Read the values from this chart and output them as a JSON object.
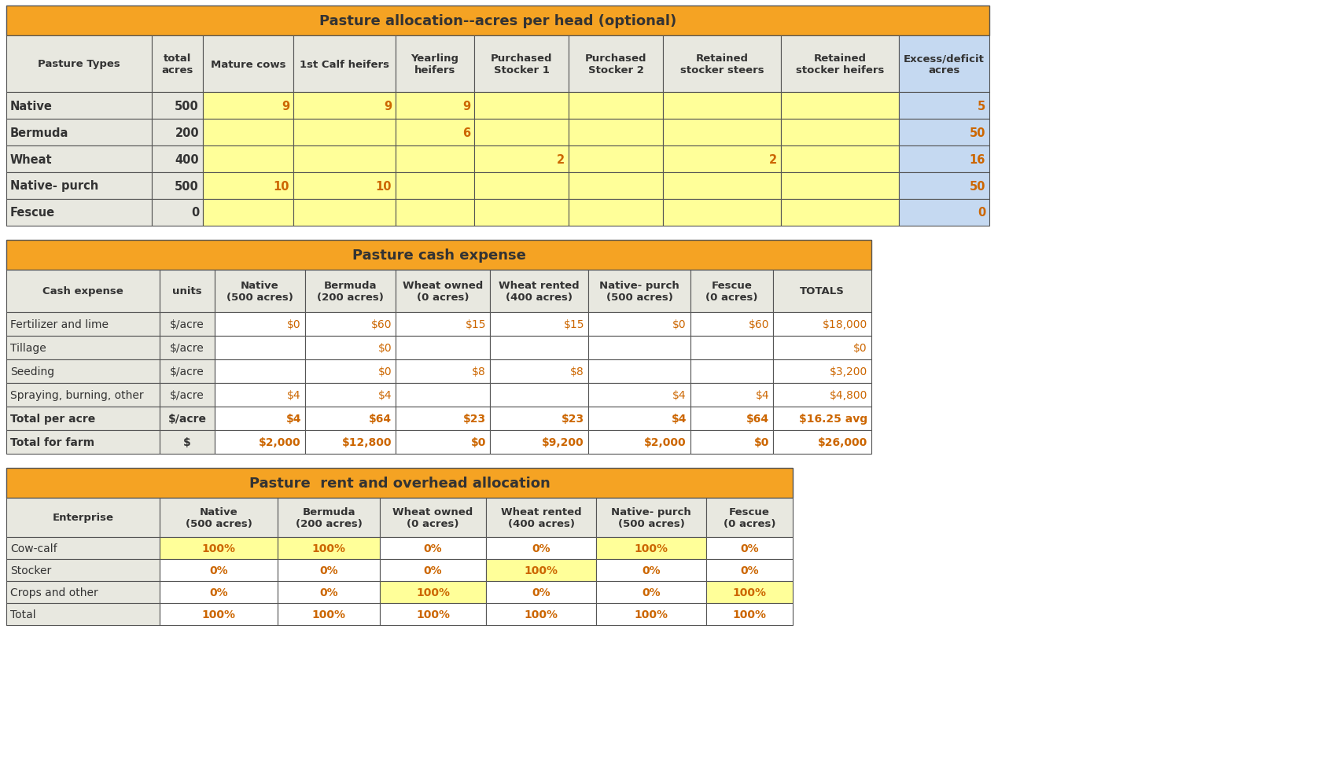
{
  "colors": {
    "orange": "#F5A323",
    "yellow": "#FFFF99",
    "blue": "#C5D9F1",
    "light_gray": "#E8E8E0",
    "white": "#FFFFFF",
    "border": "#888888",
    "text_dark": "#333333",
    "text_orange": "#CC6600"
  },
  "table1_title": "Pasture allocation--acres per head (optional)",
  "table1_col_headers": [
    "Pasture Types",
    "total\nacres",
    "Mature cows",
    "1st Calf heifers",
    "Yearling\nheifers",
    "Purchased\nStocker 1",
    "Purchased\nStocker 2",
    "Retained\nstocker steers",
    "Retained\nstocker heifers",
    "Excess/deficit\nacres"
  ],
  "table1_col_widths": [
    185,
    65,
    115,
    130,
    100,
    120,
    120,
    150,
    150,
    115
  ],
  "table1_rows": [
    [
      "Native",
      "500",
      "9",
      "9",
      "9",
      "",
      "",
      "",
      "",
      "5"
    ],
    [
      "Bermuda",
      "200",
      "",
      "",
      "6",
      "",
      "",
      "",
      "",
      "50"
    ],
    [
      "Wheat",
      "400",
      "",
      "",
      "",
      "2",
      "",
      "2",
      "",
      "16"
    ],
    [
      "Native- purch",
      "500",
      "10",
      "10",
      "",
      "",
      "",
      "",
      "",
      "50"
    ],
    [
      "Fescue",
      "0",
      "",
      "",
      "",
      "",
      "",
      "",
      "",
      "0"
    ]
  ],
  "table1_row_colors": [
    [
      "lg",
      "lg",
      "y",
      "y",
      "y",
      "y",
      "y",
      "y",
      "y",
      "b"
    ],
    [
      "lg",
      "lg",
      "y",
      "y",
      "y",
      "y",
      "y",
      "y",
      "y",
      "b"
    ],
    [
      "lg",
      "lg",
      "y",
      "y",
      "y",
      "y",
      "y",
      "y",
      "y",
      "b"
    ],
    [
      "lg",
      "lg",
      "y",
      "y",
      "y",
      "y",
      "y",
      "y",
      "y",
      "b"
    ],
    [
      "lg",
      "lg",
      "y",
      "y",
      "y",
      "y",
      "y",
      "y",
      "y",
      "b"
    ]
  ],
  "table1_header_colors": [
    "lg",
    "lg",
    "lg",
    "lg",
    "lg",
    "lg",
    "lg",
    "lg",
    "lg",
    "b"
  ],
  "table2_title": "Pasture cash expense",
  "table2_col_headers": [
    "Cash expense",
    "units",
    "Native\n(500 acres)",
    "Bermuda\n(200 acres)",
    "Wheat owned\n(0 acres)",
    "Wheat rented\n(400 acres)",
    "Native- purch\n(500 acres)",
    "Fescue\n(0 acres)",
    "TOTALS"
  ],
  "table2_col_widths": [
    195,
    70,
    115,
    115,
    120,
    125,
    130,
    105,
    125
  ],
  "table2_rows": [
    [
      "Fertilizer and lime",
      "$/acre",
      "$0",
      "$60",
      "$15",
      "$15",
      "$0",
      "$60",
      "$18,000"
    ],
    [
      "Tillage",
      "$/acre",
      "",
      "$0",
      "",
      "",
      "",
      "",
      "$0"
    ],
    [
      "Seeding",
      "$/acre",
      "",
      "$0",
      "$8",
      "$8",
      "",
      "",
      "$3,200"
    ],
    [
      "Spraying, burning, other",
      "$/acre",
      "$4",
      "$4",
      "",
      "",
      "$4",
      "$4",
      "$4,800"
    ],
    [
      "Total per acre",
      "$/acre",
      "$4",
      "$64",
      "$23",
      "$23",
      "$4",
      "$64",
      "$16.25 avg"
    ],
    [
      "Total for farm",
      "$",
      "$2,000",
      "$12,800",
      "$0",
      "$9,200",
      "$2,000",
      "$0",
      "$26,000"
    ]
  ],
  "table2_row_colors": [
    [
      "lg",
      "lg",
      "w",
      "w",
      "w",
      "w",
      "w",
      "w",
      "w"
    ],
    [
      "lg",
      "lg",
      "w",
      "w",
      "w",
      "w",
      "w",
      "w",
      "w"
    ],
    [
      "lg",
      "lg",
      "w",
      "w",
      "w",
      "w",
      "w",
      "w",
      "w"
    ],
    [
      "lg",
      "lg",
      "w",
      "w",
      "w",
      "w",
      "w",
      "w",
      "w"
    ],
    [
      "lg",
      "lg",
      "w",
      "w",
      "w",
      "w",
      "w",
      "w",
      "w"
    ],
    [
      "lg",
      "lg",
      "w",
      "w",
      "w",
      "w",
      "w",
      "w",
      "w"
    ]
  ],
  "table2_bold_rows": [
    4,
    5
  ],
  "table3_title": "Pasture  rent and overhead allocation",
  "table3_col_headers": [
    "Enterprise",
    "Native\n(500 acres)",
    "Bermuda\n(200 acres)",
    "Wheat owned\n(0 acres)",
    "Wheat rented\n(400 acres)",
    "Native- purch\n(500 acres)",
    "Fescue\n(0 acres)"
  ],
  "table3_col_widths": [
    195,
    150,
    130,
    135,
    140,
    140,
    110
  ],
  "table3_rows": [
    [
      "Cow-calf",
      "100%",
      "100%",
      "0%",
      "0%",
      "100%",
      "0%"
    ],
    [
      "Stocker",
      "0%",
      "0%",
      "0%",
      "100%",
      "0%",
      "0%"
    ],
    [
      "Crops and other",
      "0%",
      "0%",
      "100%",
      "0%",
      "0%",
      "100%"
    ],
    [
      "Total",
      "100%",
      "100%",
      "100%",
      "100%",
      "100%",
      "100%"
    ]
  ],
  "table3_row_colors": [
    [
      "lg",
      "y",
      "y",
      "w",
      "w",
      "y",
      "w"
    ],
    [
      "lg",
      "w",
      "w",
      "w",
      "y",
      "w",
      "w"
    ],
    [
      "lg",
      "w",
      "w",
      "y",
      "w",
      "w",
      "y"
    ],
    [
      "lg",
      "w",
      "w",
      "w",
      "w",
      "w",
      "w"
    ]
  ]
}
